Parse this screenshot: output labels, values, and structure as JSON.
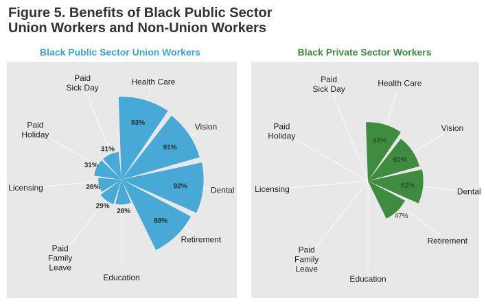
{
  "figure_title": "Figure 5. Benefits of Black Public Sector\nUnion Workers and Non-Union Workers",
  "colors": {
    "union": "#48a9d6",
    "private": "#3f8b3f",
    "union_title": "#3aa3cf",
    "private_title": "#3f8b3f",
    "panel_bg": "#e8e8e8",
    "spoke": "#f7f7f7"
  },
  "chart_data": [
    {
      "type": "polar-bar",
      "title": "Black Public Sector Union Workers",
      "categories": [
        "Health Care",
        "Vision",
        "Dental",
        "Retirement",
        "Education",
        "Paid Family Leave",
        "Licensing",
        "Paid Holiday",
        "Paid Sick Day"
      ],
      "category_labels": [
        "Health Care",
        "Vision",
        "Dental",
        "Retirement",
        "Education",
        "Paid\nFamily\nLeave",
        "Licensing",
        "Paid\nHoliday",
        "Paid\nSick Day"
      ],
      "values": [
        93,
        91,
        92,
        88,
        28,
        29,
        26,
        31,
        31
      ],
      "value_labels": [
        "93%",
        "91%",
        "92%",
        "88%",
        "28%",
        "29%",
        "26%",
        "31%",
        "31%"
      ],
      "ylim": [
        0,
        100
      ]
    },
    {
      "type": "polar-bar",
      "title": "Black Private Sector Workers",
      "categories": [
        "Health Care",
        "Vision",
        "Dental",
        "Retirement",
        "Education",
        "Paid Family Leave",
        "Licensing",
        "Paid Holiday",
        "Paid Sick Day"
      ],
      "category_labels": [
        "Health Care",
        "Vision",
        "Dental",
        "Retirement",
        "Education",
        "Paid\nFamily\nLeave",
        "Licensing",
        "Paid\nHoliday",
        "Paid\nSick Day"
      ],
      "values": [
        66,
        60,
        62,
        47,
        0,
        0,
        0,
        0,
        0
      ],
      "value_labels": [
        "66%",
        "60%",
        "62%",
        "47%",
        "",
        "",
        "",
        "",
        ""
      ],
      "ylim": [
        0,
        100
      ]
    }
  ]
}
